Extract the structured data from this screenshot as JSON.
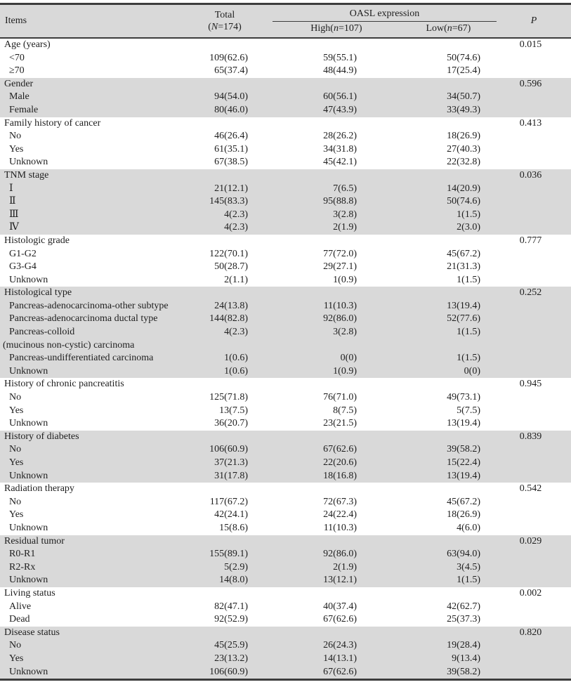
{
  "table": {
    "header": {
      "items_label": "Items",
      "total_line1": "Total",
      "total_line2": {
        "pre": "(",
        "it": "N",
        "post": "=174)"
      },
      "group_label": "OASL expression",
      "high": {
        "pre": "High(",
        "it": "n",
        "post": "=107)"
      },
      "low": {
        "pre": "Low(",
        "it": "n",
        "post": "=67)"
      },
      "p_label": "P"
    },
    "sections": [
      {
        "name": "Age (years)",
        "p": "0.015",
        "shaded": false,
        "rows": [
          {
            "label": "<70",
            "total": "109(62.6)",
            "high": "59(55.1)",
            "low": "50(74.6)"
          },
          {
            "label": "≥70",
            "total": "65(37.4)",
            "high": "48(44.9)",
            "low": "17(25.4)"
          }
        ]
      },
      {
        "name": "Gender",
        "p": "0.596",
        "shaded": true,
        "rows": [
          {
            "label": "Male",
            "total": "94(54.0)",
            "high": "60(56.1)",
            "low": "34(50.7)"
          },
          {
            "label": "Female",
            "total": "80(46.0)",
            "high": "47(43.9)",
            "low": "33(49.3)"
          }
        ]
      },
      {
        "name": "Family history of cancer",
        "p": "0.413",
        "shaded": false,
        "rows": [
          {
            "label": "No",
            "total": "46(26.4)",
            "high": "28(26.2)",
            "low": "18(26.9)"
          },
          {
            "label": "Yes",
            "total": "61(35.1)",
            "high": "34(31.8)",
            "low": "27(40.3)"
          },
          {
            "label": "Unknown",
            "total": "67(38.5)",
            "high": "45(42.1)",
            "low": "22(32.8)"
          }
        ]
      },
      {
        "name": "TNM stage",
        "p": "0.036",
        "shaded": true,
        "rows": [
          {
            "label": "Ⅰ",
            "total": "21(12.1)",
            "high": "7(6.5)",
            "low": "14(20.9)"
          },
          {
            "label": "Ⅱ",
            "total": "145(83.3)",
            "high": "95(88.8)",
            "low": "50(74.6)"
          },
          {
            "label": "Ⅲ",
            "total": "4(2.3)",
            "high": "3(2.8)",
            "low": "1(1.5)"
          },
          {
            "label": "Ⅳ",
            "total": "4(2.3)",
            "high": "2(1.9)",
            "low": "2(3.0)"
          }
        ]
      },
      {
        "name": "Histologic grade",
        "p": "0.777",
        "shaded": false,
        "rows": [
          {
            "label": "G1-G2",
            "total": "122(70.1)",
            "high": "77(72.0)",
            "low": "45(67.2)"
          },
          {
            "label": "G3-G4",
            "total": "50(28.7)",
            "high": "29(27.1)",
            "low": "21(31.3)"
          },
          {
            "label": "Unknown",
            "total": "2(1.1)",
            "high": "1(0.9)",
            "low": "1(1.5)"
          }
        ]
      },
      {
        "name": "Histological type",
        "p": "0.252",
        "shaded": true,
        "rows": [
          {
            "label": "Pancreas-adenocarcinoma-other subtype",
            "total": "24(13.8)",
            "high": "11(10.3)",
            "low": "13(19.4)"
          },
          {
            "label": "Pancreas-adenocarcinoma ductal type",
            "total": "144(82.8)",
            "high": "92(86.0)",
            "low": "52(77.6)"
          },
          {
            "label": "Pancreas-colloid",
            "label2": "(mucinous non-cystic) carcinoma",
            "total": "4(2.3)",
            "high": "3(2.8)",
            "low": "1(1.5)"
          },
          {
            "label": "Pancreas-undifferentiated carcinoma",
            "total": "1(0.6)",
            "high": "0(0)",
            "low": "1(1.5)"
          },
          {
            "label": "Unknown",
            "total": "1(0.6)",
            "high": "1(0.9)",
            "low": "0(0)"
          }
        ]
      },
      {
        "name": "History of chronic pancreatitis",
        "p": "0.945",
        "shaded": false,
        "rows": [
          {
            "label": "No",
            "total": "125(71.8)",
            "high": "76(71.0)",
            "low": "49(73.1)"
          },
          {
            "label": "Yes",
            "total": "13(7.5)",
            "high": "8(7.5)",
            "low": "5(7.5)"
          },
          {
            "label": "Unknown",
            "total": "36(20.7)",
            "high": "23(21.5)",
            "low": "13(19.4)"
          }
        ]
      },
      {
        "name": "History of diabetes",
        "p": "0.839",
        "shaded": true,
        "rows": [
          {
            "label": "No",
            "total": "106(60.9)",
            "high": "67(62.6)",
            "low": "39(58.2)"
          },
          {
            "label": "Yes",
            "total": "37(21.3)",
            "high": "22(20.6)",
            "low": "15(22.4)"
          },
          {
            "label": "Unknown",
            "total": "31(17.8)",
            "high": "18(16.8)",
            "low": "13(19.4)"
          }
        ]
      },
      {
        "name": "Radiation therapy",
        "p": "0.542",
        "shaded": false,
        "rows": [
          {
            "label": "No",
            "total": "117(67.2)",
            "high": "72(67.3)",
            "low": "45(67.2)"
          },
          {
            "label": "Yes",
            "total": "42(24.1)",
            "high": "24(22.4)",
            "low": "18(26.9)"
          },
          {
            "label": "Unknown",
            "total": "15(8.6)",
            "high": "11(10.3)",
            "low": "4(6.0)"
          }
        ]
      },
      {
        "name": "Residual tumor",
        "p": "0.029",
        "shaded": true,
        "rows": [
          {
            "label": "R0-R1",
            "total": "155(89.1)",
            "high": "92(86.0)",
            "low": "63(94.0)"
          },
          {
            "label": "R2-Rx",
            "total": "5(2.9)",
            "high": "2(1.9)",
            "low": "3(4.5)"
          },
          {
            "label": "Unknown",
            "total": "14(8.0)",
            "high": "13(12.1)",
            "low": "1(1.5)"
          }
        ]
      },
      {
        "name": "Living status",
        "p": "0.002",
        "shaded": false,
        "rows": [
          {
            "label": "Alive",
            "total": "82(47.1)",
            "high": "40(37.4)",
            "low": "42(62.7)"
          },
          {
            "label": "Dead",
            "total": "92(52.9)",
            "high": "67(62.6)",
            "low": "25(37.3)"
          }
        ]
      },
      {
        "name": "Disease status",
        "p": "0.820",
        "shaded": true,
        "rows": [
          {
            "label": "No",
            "total": "45(25.9)",
            "high": "26(24.3)",
            "low": "19(28.4)"
          },
          {
            "label": "Yes",
            "total": "23(13.2)",
            "high": "14(13.1)",
            "low": "9(13.4)"
          },
          {
            "label": "Unknown",
            "total": "106(60.9)",
            "high": "67(62.6)",
            "low": "39(58.2)"
          }
        ]
      }
    ]
  }
}
